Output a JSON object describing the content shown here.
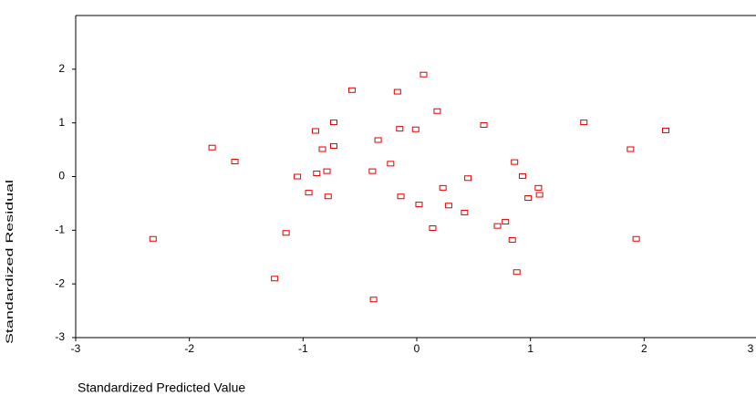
{
  "chart_data": {
    "type": "scatter",
    "xlabel": "Standardized Predicted Value",
    "ylabel": "Standardized Residual",
    "xlim": [
      -3,
      3
    ],
    "ylim": [
      -3,
      3
    ],
    "xticks": [
      -3,
      -2,
      -1,
      0,
      1,
      2,
      3
    ],
    "yticks": [
      -3,
      -2,
      -1,
      0,
      1,
      2
    ],
    "color": "#e00000",
    "x": [
      0.06,
      -0.57,
      -0.17,
      0.18,
      -0.73,
      -0.89,
      -0.15,
      -0.01,
      0.59,
      1.47,
      2.19,
      -0.34,
      -1.8,
      -0.73,
      -0.83,
      1.88,
      -1.6,
      -0.23,
      0.86,
      -0.79,
      -0.88,
      -0.39,
      -1.05,
      0.45,
      0.93,
      1.07,
      1.08,
      0.98,
      -0.95,
      -0.78,
      -0.14,
      0.23,
      0.02,
      0.28,
      0.42,
      0.78,
      0.71,
      0.14,
      -1.15,
      -2.32,
      0.84,
      1.93,
      0.88,
      -1.25,
      -0.38
    ],
    "y": [
      1.9,
      1.61,
      1.58,
      1.22,
      1.01,
      0.85,
      0.89,
      0.88,
      0.96,
      1.01,
      0.86,
      0.68,
      0.54,
      0.57,
      0.51,
      0.51,
      0.28,
      0.24,
      0.27,
      0.1,
      0.06,
      0.1,
      0.0,
      -0.03,
      0.01,
      -0.21,
      -0.34,
      -0.4,
      -0.3,
      -0.37,
      -0.37,
      -0.21,
      -0.52,
      -0.54,
      -0.67,
      -0.84,
      -0.92,
      -0.96,
      -1.05,
      -1.16,
      -1.18,
      -1.16,
      -1.78,
      -1.9,
      -2.29
    ]
  }
}
